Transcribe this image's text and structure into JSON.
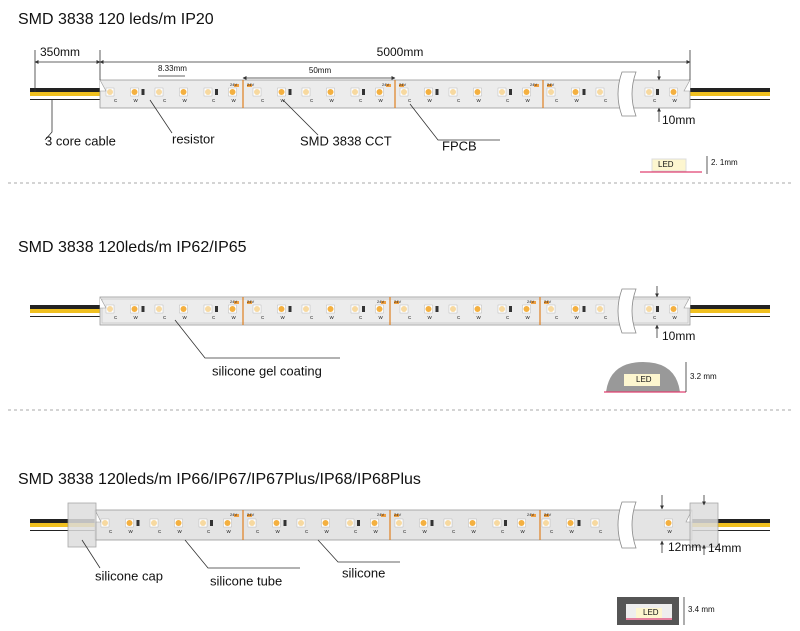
{
  "sections": [
    {
      "title": "SMD 3838  120 leds/m IP20",
      "dimensions": {
        "cable": "350mm",
        "length": "5000mm",
        "pitch": "8.33mm",
        "cut": "50mm",
        "width": "10mm"
      },
      "labels": [
        "3  core cable",
        "resistor",
        "SMD  3838  CCT",
        "FPCB"
      ],
      "cross_section": {
        "chip": "LED",
        "thickness": "2. 1mm"
      }
    },
    {
      "title": "SMD 3838  120leds/m IP62/IP65",
      "dimensions": {
        "width": "10mm"
      },
      "labels": [
        "silicone gel coating"
      ],
      "cross_section": {
        "chip": "LED",
        "thickness": "3.2 mm"
      }
    },
    {
      "title": "SMD 3838  120leds/m IP66/IP67/IP67Plus/IP68/IP68Plus",
      "dimensions": {
        "width": "12mm",
        "cap_width": "14mm"
      },
      "labels": [
        "silicone cap",
        "silicone tube",
        "silicone"
      ],
      "cross_section": {
        "chip": "LED",
        "thickness": "3.4 mm"
      }
    }
  ],
  "strip_marks": {
    "voltage": "24V",
    "cold": "C",
    "warm": "W"
  }
}
